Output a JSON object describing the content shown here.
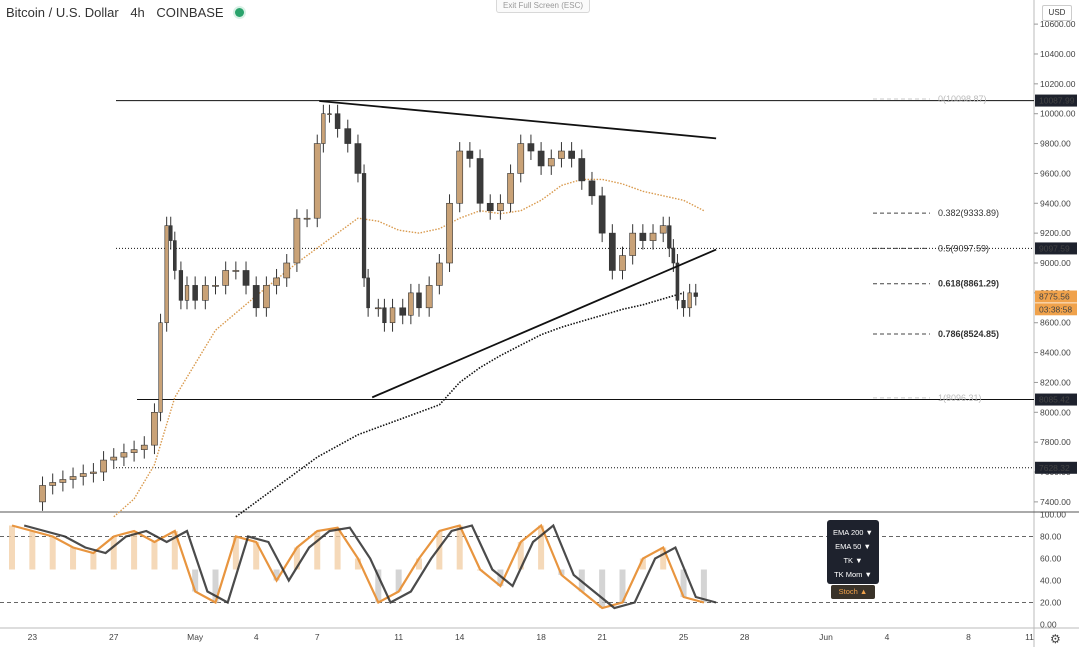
{
  "header": {
    "symbol": "Bitcoin / U.S. Dollar",
    "interval": "4h",
    "exchange": "COINBASE",
    "exit_fullscreen": "Exit Full Screen (ESC)",
    "currency": "USD"
  },
  "colors": {
    "candle_up": "#c9a277",
    "candle_down": "#3a3a3a",
    "ema200": "#111111",
    "ema50": "#d99a4e",
    "osc_orange": "#e8953f",
    "osc_dark": "#2b2b2b",
    "live_dot": "#2aa36c"
  },
  "chart_data": {
    "type": "candlestick",
    "y_axis": {
      "range": [
        7300,
        10700
      ],
      "ticks": [
        10600,
        10400,
        10200,
        10000,
        9800,
        9600,
        9400,
        9200,
        9000,
        8800,
        8600,
        8400,
        8200,
        8000,
        7800,
        7600,
        7400
      ],
      "tick_labels": [
        "10600.00",
        "10400.00",
        "10200.00",
        "10000.00",
        "9800.00",
        "9600.00",
        "9400.00",
        "9200.00",
        "9000.00",
        "8800.00",
        "8600.00",
        "8400.00",
        "8200.00",
        "8000.00",
        "7800.00",
        "7600.00",
        "7400.00"
      ],
      "badges": [
        {
          "label": "10087.99",
          "value": 10087.99,
          "style": "dark"
        },
        {
          "label": "9097.59",
          "value": 9097.59,
          "style": "dark"
        },
        {
          "label": "8775.56",
          "value": 8775.56,
          "style": "orange"
        },
        {
          "label": "03:38:58",
          "value": 8690,
          "style": "orange"
        },
        {
          "label": "8085.42",
          "value": 8085.42,
          "style": "dark"
        },
        {
          "label": "7628.32",
          "value": 7628.32,
          "style": "dark"
        }
      ]
    },
    "x_axis": {
      "unit": "days since Apr 22",
      "labels": [
        "23",
        "27",
        "May",
        "4",
        "7",
        "11",
        "14",
        "18",
        "21",
        "25",
        "28",
        "Jun",
        "4",
        "8",
        "11"
      ],
      "label_days": [
        1,
        5,
        9,
        12,
        15,
        19,
        22,
        26,
        29,
        33,
        36,
        40,
        43,
        47,
        50
      ]
    },
    "horizontal_levels": [
      {
        "value": 10087.99,
        "style": "solid"
      },
      {
        "value": 9097.59,
        "style": "dotted"
      },
      {
        "value": 8085.42,
        "style": "solid"
      },
      {
        "value": 7628.32,
        "style": "dotted"
      }
    ],
    "fibonacci": [
      {
        "label": "0(10098.87)",
        "value": 10098.87,
        "faded": true
      },
      {
        "label": "0.382(9333.89)",
        "value": 9333.89,
        "faded": false,
        "bold": false
      },
      {
        "label": "0.5(9097.59)",
        "value": 9097.59,
        "faded": false,
        "bold": false
      },
      {
        "label": "0.618(8861.29)",
        "value": 8861.29,
        "faded": false,
        "bold": true
      },
      {
        "label": "0.786(8524.85)",
        "value": 8524.85,
        "faded": false,
        "bold": true
      },
      {
        "label": "1(8096.31)",
        "value": 8096.31,
        "faded": true
      }
    ],
    "trendlines": [
      {
        "name": "upper",
        "from": [
          15.1,
          10085
        ],
        "to": [
          34.6,
          9835
        ]
      },
      {
        "name": "lower",
        "from": [
          17.7,
          8100
        ],
        "to": [
          34.6,
          9090
        ]
      }
    ],
    "closes": [
      [
        1,
        7400
      ],
      [
        1.5,
        7510
      ],
      [
        2,
        7530
      ],
      [
        2.5,
        7550
      ],
      [
        3,
        7570
      ],
      [
        3.5,
        7590
      ],
      [
        4,
        7600
      ],
      [
        4.5,
        7680
      ],
      [
        5,
        7700
      ],
      [
        5.5,
        7730
      ],
      [
        6,
        7750
      ],
      [
        6.5,
        7780
      ],
      [
        7,
        8000
      ],
      [
        7.3,
        8600
      ],
      [
        7.6,
        9250
      ],
      [
        7.8,
        9150
      ],
      [
        8,
        8950
      ],
      [
        8.3,
        8750
      ],
      [
        8.6,
        8850
      ],
      [
        9,
        8750
      ],
      [
        9.5,
        8850
      ],
      [
        10,
        8850
      ],
      [
        10.5,
        8950
      ],
      [
        11,
        8950
      ],
      [
        11.5,
        8850
      ],
      [
        12,
        8700
      ],
      [
        12.5,
        8850
      ],
      [
        13,
        8900
      ],
      [
        13.5,
        9000
      ],
      [
        14,
        9300
      ],
      [
        14.5,
        9300
      ],
      [
        15,
        9800
      ],
      [
        15.3,
        10000
      ],
      [
        15.6,
        10000
      ],
      [
        16,
        9900
      ],
      [
        16.5,
        9800
      ],
      [
        17,
        9600
      ],
      [
        17.3,
        8900
      ],
      [
        17.5,
        8700
      ],
      [
        18,
        8700
      ],
      [
        18.3,
        8600
      ],
      [
        18.7,
        8700
      ],
      [
        19.2,
        8650
      ],
      [
        19.6,
        8800
      ],
      [
        20,
        8700
      ],
      [
        20.5,
        8850
      ],
      [
        21,
        9000
      ],
      [
        21.5,
        9400
      ],
      [
        22,
        9750
      ],
      [
        22.5,
        9700
      ],
      [
        23,
        9400
      ],
      [
        23.5,
        9350
      ],
      [
        24,
        9400
      ],
      [
        24.5,
        9600
      ],
      [
        25,
        9800
      ],
      [
        25.5,
        9750
      ],
      [
        26,
        9650
      ],
      [
        26.5,
        9700
      ],
      [
        27,
        9750
      ],
      [
        27.5,
        9700
      ],
      [
        28,
        9550
      ],
      [
        28.5,
        9450
      ],
      [
        29,
        9200
      ],
      [
        29.5,
        8950
      ],
      [
        30,
        9050
      ],
      [
        30.5,
        9200
      ],
      [
        31,
        9150
      ],
      [
        31.5,
        9200
      ],
      [
        32,
        9250
      ],
      [
        32.3,
        9100
      ],
      [
        32.5,
        9000
      ],
      [
        32.7,
        8750
      ],
      [
        33,
        8700
      ],
      [
        33.3,
        8800
      ],
      [
        33.6,
        8775.56
      ]
    ],
    "ema50": [
      [
        5,
        7300
      ],
      [
        6,
        7420
      ],
      [
        7,
        7650
      ],
      [
        8,
        8100
      ],
      [
        10,
        8550
      ],
      [
        12,
        8780
      ],
      [
        14,
        9000
      ],
      [
        16,
        9200
      ],
      [
        17,
        9300
      ],
      [
        18,
        9280
      ],
      [
        19,
        9220
      ],
      [
        20,
        9200
      ],
      [
        21,
        9230
      ],
      [
        22,
        9300
      ],
      [
        23,
        9350
      ],
      [
        24,
        9330
      ],
      [
        25,
        9350
      ],
      [
        26,
        9420
      ],
      [
        27,
        9520
      ],
      [
        28,
        9560
      ],
      [
        29,
        9560
      ],
      [
        30,
        9530
      ],
      [
        31,
        9480
      ],
      [
        32,
        9450
      ],
      [
        33,
        9420
      ],
      [
        34,
        9350
      ]
    ],
    "ema200": [
      [
        11,
        7300
      ],
      [
        13,
        7500
      ],
      [
        15,
        7700
      ],
      [
        17,
        7850
      ],
      [
        18,
        7900
      ],
      [
        19,
        7950
      ],
      [
        20,
        8000
      ],
      [
        21,
        8050
      ],
      [
        22,
        8200
      ],
      [
        23,
        8300
      ],
      [
        24,
        8380
      ],
      [
        25,
        8450
      ],
      [
        26,
        8520
      ],
      [
        27,
        8570
      ],
      [
        28,
        8610
      ],
      [
        29,
        8650
      ],
      [
        30,
        8690
      ],
      [
        31,
        8720
      ],
      [
        32,
        8760
      ],
      [
        33,
        8800
      ]
    ],
    "oscillator": {
      "range": [
        0,
        100
      ],
      "ticks": [
        100,
        80,
        60,
        40,
        20,
        0
      ],
      "tick_labels": [
        "100.00",
        "80.00",
        "60.00",
        "40.00",
        "20.00",
        "0.00"
      ],
      "levels": [
        80,
        20
      ],
      "k_line": [
        [
          0,
          90
        ],
        [
          1,
          85
        ],
        [
          2,
          80
        ],
        [
          3,
          70
        ],
        [
          4,
          65
        ],
        [
          5,
          80
        ],
        [
          6,
          85
        ],
        [
          7,
          75
        ],
        [
          8,
          85
        ],
        [
          9,
          30
        ],
        [
          10,
          20
        ],
        [
          11,
          80
        ],
        [
          12,
          75
        ],
        [
          13,
          40
        ],
        [
          14,
          70
        ],
        [
          15,
          85
        ],
        [
          16,
          88
        ],
        [
          17,
          60
        ],
        [
          18,
          20
        ],
        [
          19,
          30
        ],
        [
          20,
          60
        ],
        [
          21,
          85
        ],
        [
          22,
          90
        ],
        [
          23,
          50
        ],
        [
          24,
          35
        ],
        [
          25,
          75
        ],
        [
          26,
          90
        ],
        [
          27,
          45
        ],
        [
          28,
          30
        ],
        [
          29,
          15
        ],
        [
          30,
          20
        ],
        [
          31,
          60
        ],
        [
          32,
          70
        ],
        [
          33,
          25
        ],
        [
          34,
          20
        ]
      ]
    },
    "indicator_legend": [
      {
        "label": "EMA 200",
        "state": "▼"
      },
      {
        "label": "EMA 50",
        "state": "▼"
      },
      {
        "label": "TK",
        "state": "▼"
      },
      {
        "label": "TK Mom",
        "state": "▼"
      },
      {
        "label": "Stoch",
        "state": "▲"
      }
    ]
  }
}
